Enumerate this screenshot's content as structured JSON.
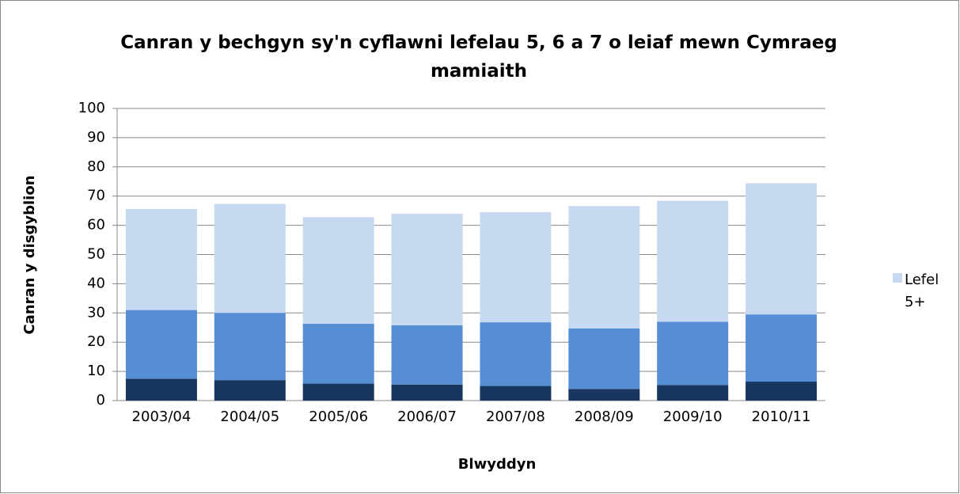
{
  "chart_data": {
    "type": "stacked_bar",
    "title": "Canran y bechgyn sy'n cyflawni lefelau 5, 6 a 7 o leiaf mewn Cymraeg mamiaith",
    "xlabel": "Blwyddyn",
    "ylabel": "Canran y disgyblion",
    "categories": [
      "2003/04",
      "2004/05",
      "2005/06",
      "2006/07",
      "2007/08",
      "2008/09",
      "2009/10",
      "2010/11"
    ],
    "series": [
      {
        "color": "#17375e",
        "values": [
          7.5,
          7,
          5.8,
          5.5,
          5,
          4,
          5.3,
          6.5
        ]
      },
      {
        "color": "#558ed5",
        "values": [
          23.5,
          23,
          20.5,
          20.3,
          21.8,
          20.7,
          21.7,
          23
        ]
      },
      {
        "name": "Lefel 5+",
        "color": "#c6d9f1",
        "values": [
          34.6,
          37.3,
          36.5,
          38.2,
          37.7,
          41.9,
          41.4,
          44.9
        ]
      }
    ],
    "ylim": [
      0,
      100
    ],
    "yticks": [
      0,
      10,
      20,
      30,
      40,
      50,
      60,
      70,
      80,
      90,
      100
    ],
    "grid": true,
    "legend": "right"
  }
}
